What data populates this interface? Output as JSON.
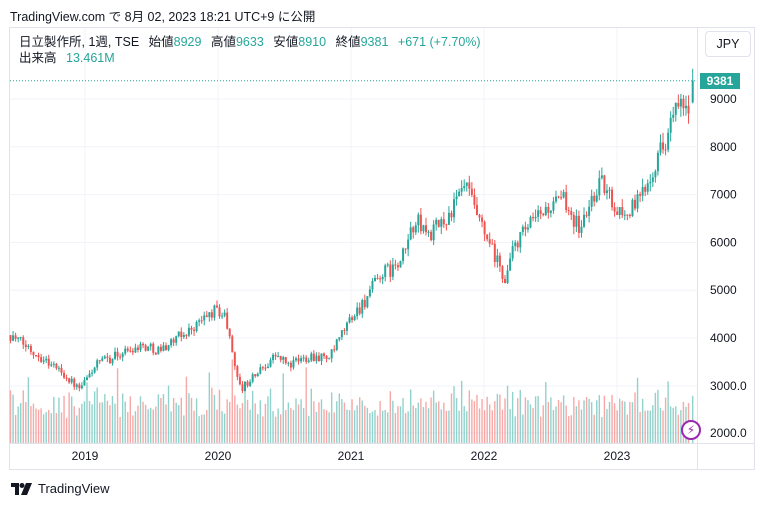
{
  "published": "TradingView.com で 8月 02, 2023 18:21 UTC+9 に公開",
  "legend": {
    "symbol": "日立製作所, 1週, TSE",
    "open_label": "始値",
    "open": "8929",
    "high_label": "高値",
    "high": "9633",
    "low_label": "安値",
    "low": "8910",
    "close_label": "終値",
    "close": "9381",
    "change": "+671 (+7.70%)",
    "volume_label": "出来高",
    "volume": "13.461M"
  },
  "currency_button": "JPY",
  "last_price": "9381",
  "logo_text": "TradingView",
  "colors": {
    "up": "#26a69a",
    "down": "#ef5350",
    "accent": "#9c27b0"
  },
  "chart_data": {
    "type": "candlestick",
    "title": "日立製作所, 1週, TSE",
    "interval": "weekly",
    "x_ticks": [
      "2019",
      "2020",
      "2021",
      "2022",
      "2023"
    ],
    "y_ticks": [
      "4000",
      "5000",
      "6000",
      "7000",
      "8000",
      "9000"
    ],
    "volume_ticks": [
      "2000.0",
      "3000.0"
    ],
    "ylim": [
      3000,
      9700
    ],
    "close_path": [
      [
        2018.44,
        4060
      ],
      [
        2018.81,
        3330
      ],
      [
        2018.96,
        2910
      ],
      [
        2019.08,
        3440
      ],
      [
        2019.41,
        3850
      ],
      [
        2019.56,
        3750
      ],
      [
        2019.79,
        4170
      ],
      [
        2019.98,
        4590
      ],
      [
        2020.05,
        4480
      ],
      [
        2020.17,
        2910
      ],
      [
        2020.24,
        3120
      ],
      [
        2020.43,
        3640
      ],
      [
        2020.54,
        3430
      ],
      [
        2020.69,
        3640
      ],
      [
        2020.84,
        3580
      ],
      [
        2020.99,
        4380
      ],
      [
        2021.11,
        4800
      ],
      [
        2021.22,
        5320
      ],
      [
        2021.37,
        5530
      ],
      [
        2021.48,
        6470
      ],
      [
        2021.59,
        6150
      ],
      [
        2021.74,
        6570
      ],
      [
        2021.86,
        7200
      ],
      [
        2021.97,
        6360
      ],
      [
        2022.16,
        5210
      ],
      [
        2022.23,
        5950
      ],
      [
        2022.35,
        6360
      ],
      [
        2022.46,
        6680
      ],
      [
        2022.61,
        6890
      ],
      [
        2022.72,
        6260
      ],
      [
        2022.87,
        7300
      ],
      [
        2022.98,
        6780
      ],
      [
        2023.06,
        6570
      ],
      [
        2023.17,
        6890
      ],
      [
        2023.29,
        7720
      ],
      [
        2023.36,
        8140
      ],
      [
        2023.44,
        8770
      ],
      [
        2023.55,
        8770
      ]
    ],
    "last_candle": {
      "open": 8929,
      "high": 9633,
      "low": 8910,
      "close": 9381
    }
  }
}
